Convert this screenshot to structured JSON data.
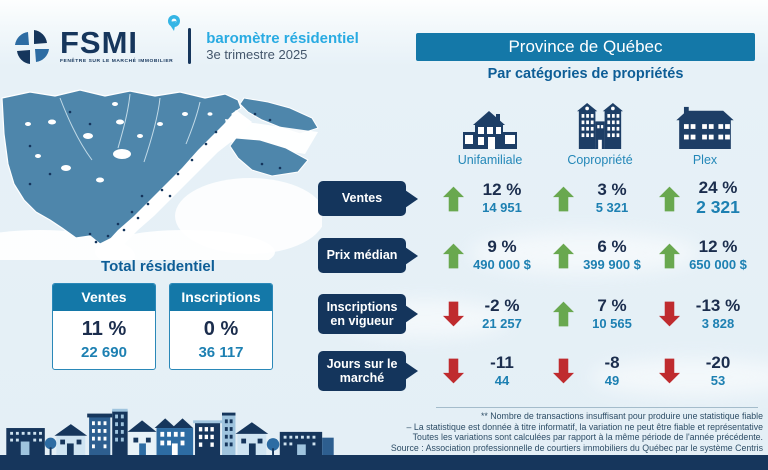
{
  "header": {
    "brand": "FSMI",
    "tagline": "FENÊTRE SUR LE MARCHÉ IMMOBILIER",
    "product": "baromètre résidentiel",
    "period": "3e trimestre 2025",
    "region_title": "Province de Québec",
    "subtitle": "Par catégories de propriétés"
  },
  "totals": {
    "title": "Total résidentiel",
    "cards": [
      {
        "label": "Ventes",
        "percent": "11 %",
        "value": "22 690"
      },
      {
        "label": "Inscriptions",
        "percent": "0 %",
        "value": "36 117"
      }
    ]
  },
  "categories": [
    {
      "label": "Unifamiliale",
      "icon": "house"
    },
    {
      "label": "Copropriété",
      "icon": "condo"
    },
    {
      "label": "Plex",
      "icon": "plex"
    }
  ],
  "rows": [
    {
      "label": "Ventes",
      "cells": [
        {
          "direction": "up",
          "percent": "12 %",
          "value": "14 951"
        },
        {
          "direction": "up",
          "percent": "3 %",
          "value": "5 321"
        },
        {
          "direction": "up",
          "percent": "24 %",
          "value": "2 321",
          "emphasis": true
        }
      ]
    },
    {
      "label": "Prix médian",
      "cells": [
        {
          "direction": "up",
          "percent": "9 %",
          "value": "490 000 $"
        },
        {
          "direction": "up",
          "percent": "6 %",
          "value": "399 900 $"
        },
        {
          "direction": "up",
          "percent": "12 %",
          "value": "650 000 $"
        }
      ]
    },
    {
      "label": "Inscriptions en vigueur",
      "cells": [
        {
          "direction": "down",
          "percent": "-2 %",
          "value": "21 257"
        },
        {
          "direction": "up",
          "percent": "7 %",
          "value": "10 565"
        },
        {
          "direction": "down",
          "percent": "-13 %",
          "value": "3 828"
        }
      ]
    },
    {
      "label": "Jours sur le marché",
      "cells": [
        {
          "direction": "down",
          "percent": "-11",
          "value": "44"
        },
        {
          "direction": "down",
          "percent": "-8",
          "value": "49"
        },
        {
          "direction": "down",
          "percent": "-20",
          "value": "53"
        }
      ]
    }
  ],
  "footnotes": [
    "** Nombre de transactions insuffisant pour produire une statistique fiable",
    "–  La statistique est donnée à titre informatif, la variation ne peut être fiable et représentative",
    "Toutes les variations sont calculées par rapport à la même période de l'année précédente.",
    "Source : Association professionnelle de courtiers immobiliers du Québec par le système Centris"
  ],
  "colors": {
    "navy": "#16365c",
    "teal": "#1478a8",
    "cyan": "#29abe2",
    "green": "#69a84f",
    "red": "#bf2b2e",
    "map_blue": "#4e86ab",
    "value_blue": "#1d80b2",
    "title_blue": "#0d5d96"
  }
}
